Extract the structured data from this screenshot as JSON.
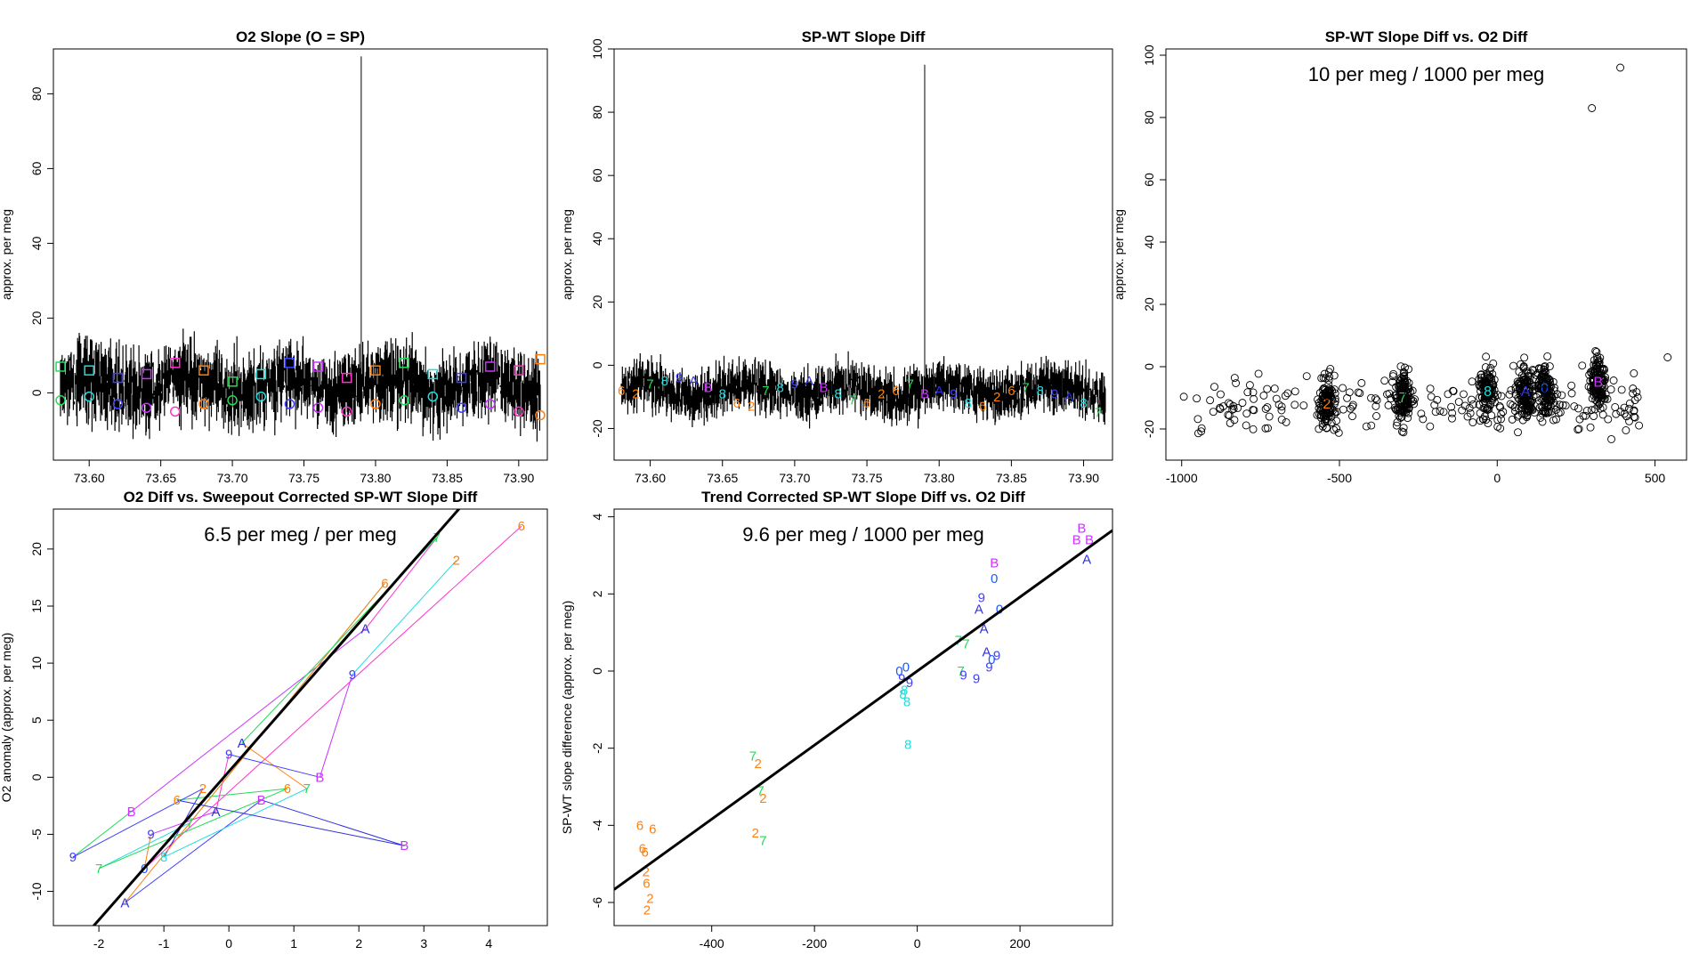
{
  "palette": {
    "c0": "#1e5aff",
    "c2": "#ff7f0e",
    "c6": "#ff7f0e",
    "c7": "#22dd55",
    "c8": "#22dddd",
    "c9": "#4040ff",
    "cA": "#3030e0",
    "cB": "#cc33ff",
    "cEcho0": "#8a2be2",
    "cPink": "#ff33cc",
    "ink": "#000000"
  },
  "chart_data": [
    {
      "type": "line",
      "title": "O2 Slope (O = SP)",
      "ylabel": "approx. per meg",
      "xlim": [
        73.575,
        73.92
      ],
      "ylim": [
        -18,
        92
      ],
      "xticks": [
        "73.60",
        "73.65",
        "73.70",
        "73.75",
        "73.80",
        "73.85",
        "73.90"
      ],
      "xtick_values": [
        73.6,
        73.65,
        73.7,
        73.75,
        73.8,
        73.85,
        73.9
      ],
      "yticks": [
        "0",
        "20",
        "40",
        "60",
        "80"
      ],
      "ytick_values": [
        0,
        20,
        40,
        60,
        80
      ],
      "noise": {
        "center": 2,
        "spread": 9,
        "spike_x": 73.79,
        "spike_y": 90
      },
      "series": [
        {
          "marker": "square",
          "values_x": [
            73.58,
            73.6,
            73.62,
            73.64,
            73.66,
            73.68,
            73.7,
            73.72,
            73.74,
            73.76,
            73.78,
            73.8,
            73.82,
            73.84,
            73.86,
            73.88,
            73.9,
            73.915
          ],
          "values_y": [
            7,
            6,
            4,
            5,
            8,
            6,
            3,
            5,
            8,
            7,
            4,
            6,
            8,
            5,
            4,
            7,
            6,
            9
          ]
        },
        {
          "marker": "circle",
          "values_x": [
            73.58,
            73.6,
            73.62,
            73.64,
            73.66,
            73.68,
            73.7,
            73.72,
            73.74,
            73.76,
            73.78,
            73.8,
            73.82,
            73.84,
            73.86,
            73.88,
            73.9,
            73.915
          ],
          "values_y": [
            -2,
            -1,
            -3,
            -4,
            -5,
            -3,
            -2,
            -1,
            -3,
            -4,
            -5,
            -3,
            -2,
            -1,
            -4,
            -3,
            -5,
            -6
          ]
        }
      ]
    },
    {
      "type": "line",
      "title": "SP-WT Slope Diff",
      "ylabel": "approx. per meg",
      "xlim": [
        73.575,
        73.92
      ],
      "ylim": [
        -30,
        100
      ],
      "xticks": [
        "73.60",
        "73.65",
        "73.70",
        "73.75",
        "73.80",
        "73.85",
        "73.90"
      ],
      "xtick_values": [
        73.6,
        73.65,
        73.7,
        73.75,
        73.8,
        73.85,
        73.9
      ],
      "yticks": [
        "-20",
        "0",
        "20",
        "40",
        "60",
        "80",
        "100"
      ],
      "ytick_values": [
        -20,
        0,
        20,
        40,
        60,
        80,
        100
      ],
      "noise": {
        "center": -8,
        "spread": 7,
        "spike_x": 73.79,
        "spike_y": 95
      },
      "labels": {
        "x": [
          73.58,
          73.59,
          73.6,
          73.61,
          73.62,
          73.63,
          73.64,
          73.65,
          73.66,
          73.67,
          73.68,
          73.69,
          73.7,
          73.71,
          73.72,
          73.73,
          73.74,
          73.75,
          73.76,
          73.77,
          73.78,
          73.79,
          73.8,
          73.81,
          73.82,
          73.83,
          73.84,
          73.85,
          73.86,
          73.87,
          73.88,
          73.89,
          73.9,
          73.91
        ],
        "y": [
          -8,
          -9,
          -6,
          -5,
          -4,
          -5,
          -7,
          -9,
          -12,
          -13,
          -8,
          -7,
          -6,
          -5,
          -7,
          -9,
          -11,
          -12,
          -9,
          -8,
          -6,
          -9,
          -8,
          -9,
          -12,
          -13,
          -10,
          -8,
          -7,
          -8,
          -9,
          -10,
          -12,
          -15
        ],
        "text": [
          "6",
          "2",
          "7",
          "8",
          "9",
          "A",
          "B",
          "8",
          "6",
          "2",
          "7",
          "8",
          "9",
          "A",
          "B",
          "8",
          "7",
          "6",
          "2",
          "6",
          "7",
          "B",
          "A",
          "9",
          "8",
          "6",
          "2",
          "6",
          "7",
          "8",
          "9",
          "A",
          "8",
          "7"
        ]
      }
    },
    {
      "type": "scatter",
      "title": "SP-WT Slope Diff vs. O2 Diff",
      "annotation": "10 per meg / 1000 per meg",
      "ylabel": "approx. per meg",
      "xlim": [
        -1050,
        600
      ],
      "ylim": [
        -30,
        102
      ],
      "xticks": [
        "-1000",
        "-500",
        "0",
        "500"
      ],
      "xtick_values": [
        -1000,
        -500,
        0,
        500
      ],
      "yticks": [
        "-20",
        "0",
        "20",
        "40",
        "60",
        "80",
        "100"
      ],
      "ytick_values": [
        -20,
        0,
        20,
        40,
        60,
        80,
        100
      ],
      "clusters": [
        {
          "x": -540,
          "y": -12,
          "label": "2"
        },
        {
          "x": -300,
          "y": -10,
          "label": "7"
        },
        {
          "x": -30,
          "y": -8,
          "label": "8"
        },
        {
          "x": 90,
          "y": -8,
          "label": "A"
        },
        {
          "x": 150,
          "y": -7,
          "label": "0"
        },
        {
          "x": 320,
          "y": -5,
          "label": "B"
        }
      ],
      "outliers_x": [
        300,
        390,
        540,
        430
      ],
      "outliers_y": [
        83,
        96,
        3,
        -7
      ]
    },
    {
      "type": "line",
      "title": "O2 Diff vs. Sweepout Corrected SP-WT Slope Diff",
      "annotation": "6.5 per meg / per meg",
      "ylabel": "O2 anomaly (approx. per meg)",
      "xlim": [
        -2.7,
        4.9
      ],
      "ylim": [
        -13,
        23.5
      ],
      "xticks": [
        "-2",
        "-1",
        "0",
        "1",
        "2",
        "3",
        "4"
      ],
      "xtick_values": [
        -2,
        -1,
        0,
        1,
        2,
        3,
        4
      ],
      "yticks": [
        "-10",
        "-5",
        "0",
        "5",
        "10",
        "15",
        "20"
      ],
      "ytick_values": [
        -10,
        -5,
        0,
        5,
        10,
        15,
        20
      ],
      "fit_line": {
        "slope": 6.5,
        "intercept": 0.5
      },
      "points_x": [
        -2.4,
        -2.0,
        -1.6,
        -1.5,
        -1.3,
        -1.2,
        -1.0,
        -0.8,
        -0.6,
        -0.4,
        -0.2,
        0.0,
        0.2,
        0.5,
        0.9,
        1.2,
        1.4,
        1.9,
        2.1,
        2.4,
        2.7,
        3.2,
        3.5,
        4.5
      ],
      "points_y": [
        -7,
        -8,
        -11,
        -3,
        -8,
        -5,
        -7,
        -2,
        -4,
        -1,
        -3,
        2,
        3,
        -2,
        -1,
        -1,
        0,
        9,
        13,
        17,
        -6,
        21,
        19,
        22
      ],
      "point_labels": [
        "9",
        "7",
        "A",
        "B",
        "0",
        "9",
        "8",
        "6",
        "7",
        "2",
        "A",
        "9",
        "A",
        "B",
        "6",
        "7",
        "B",
        "9",
        "A",
        "6",
        "B",
        "7",
        "2",
        "6"
      ]
    },
    {
      "type": "scatter",
      "title": "Trend Corrected SP-WT Slope Diff vs. O2 Diff",
      "annotation": "9.6 per meg / 1000 per meg",
      "ylabel": "SP-WT slope difference (approx. per meg)",
      "xlim": [
        -590,
        380
      ],
      "ylim": [
        -6.6,
        4.2
      ],
      "xticks": [
        "-400",
        "-200",
        "0",
        "200"
      ],
      "xtick_values": [
        -400,
        -200,
        0,
        200
      ],
      "yticks": [
        "-6",
        "-4",
        "-2",
        "0",
        "2",
        "4"
      ],
      "ytick_values": [
        -6,
        -4,
        -2,
        0,
        2,
        4
      ],
      "fit_line": {
        "slope": 0.0096,
        "intercept": 0
      },
      "points_x": [
        -540,
        -535,
        -530,
        -528,
        -527,
        -526,
        -520,
        -515,
        -320,
        -310,
        -305,
        -300,
        -315,
        -300,
        -35,
        -30,
        -28,
        -25,
        -22,
        -20,
        -18,
        -15,
        80,
        85,
        90,
        95,
        115,
        120,
        125,
        130,
        135,
        140,
        145,
        150,
        150,
        155,
        160,
        310,
        320,
        330,
        335
      ],
      "points_y": [
        -4.0,
        -4.6,
        -4.7,
        -5.2,
        -5.5,
        -6.2,
        -5.9,
        -4.1,
        -2.2,
        -2.4,
        -3.1,
        -3.3,
        -4.2,
        -4.4,
        0.0,
        -0.2,
        -0.6,
        -0.5,
        0.1,
        -0.8,
        -1.9,
        -0.3,
        0.8,
        0.0,
        -0.1,
        0.7,
        -0.2,
        1.6,
        1.9,
        1.1,
        0.5,
        0.1,
        0.3,
        2.8,
        2.4,
        0.4,
        1.6,
        3.4,
        3.7,
        2.9,
        3.4
      ],
      "point_labels": [
        "6",
        "6",
        "6",
        "2",
        "6",
        "2",
        "2",
        "6",
        "7",
        "2",
        "7",
        "2",
        "2",
        "7",
        "0",
        "9",
        "8",
        "8",
        "0",
        "8",
        "8",
        "9",
        "7",
        "7",
        "9",
        "7",
        "9",
        "A",
        "9",
        "A",
        "A",
        "9",
        "0",
        "B",
        "0",
        "9",
        "0",
        "B",
        "B",
        "A",
        "B"
      ]
    }
  ]
}
